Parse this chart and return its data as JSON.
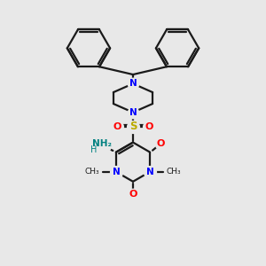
{
  "bg_color": "#e8e8e8",
  "line_color": "#1a1a1a",
  "N_color": "#0000ff",
  "O_color": "#ff0000",
  "S_color": "#bbaa00",
  "NH2_color": "#008080",
  "line_width": 1.6,
  "figsize": [
    3.0,
    3.0
  ],
  "dpi": 100,
  "xlim": [
    0,
    10
  ],
  "ylim": [
    0,
    10
  ]
}
